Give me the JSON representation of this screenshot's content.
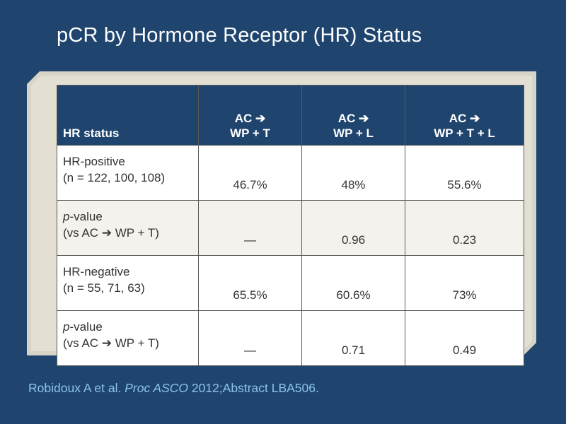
{
  "title": "pCR by Hormone Receptor (HR) Status",
  "table": {
    "headers": [
      {
        "line1": "HR status",
        "line2": ""
      },
      {
        "line1": "AC ➔",
        "line2": "WP + T"
      },
      {
        "line1": "AC ➔",
        "line2": "WP + L"
      },
      {
        "line1": "AC ➔",
        "line2": "WP + T + L"
      }
    ],
    "rows": [
      {
        "label1": "HR-positive",
        "label1_italic": "",
        "label2": "(n = 122, 100, 108)",
        "values": [
          "46.7%",
          "48%",
          "55.6%"
        ]
      },
      {
        "label1": "-value",
        "label1_italic": "p",
        "label2": "(vs AC ➔ WP + T)",
        "values": [
          "—",
          "0.96",
          "0.23"
        ]
      },
      {
        "label1": "HR-negative",
        "label1_italic": "",
        "label2": "(n = 55, 71, 63)",
        "values": [
          "65.5%",
          "60.6%",
          "73%"
        ]
      },
      {
        "label1": "-value",
        "label1_italic": "p",
        "label2": "(vs AC ➔ WP + T)",
        "values": [
          "—",
          "0.71",
          "0.49"
        ]
      }
    ]
  },
  "citation": {
    "authors": "Robidoux A et al. ",
    "journal": "Proc ASCO",
    "rest": " 2012;Abstract LBA506."
  },
  "colors": {
    "background": "#1f456f",
    "panel": "#e3dfd3",
    "header": "#1f456f",
    "citation": "#8cc4e6"
  }
}
